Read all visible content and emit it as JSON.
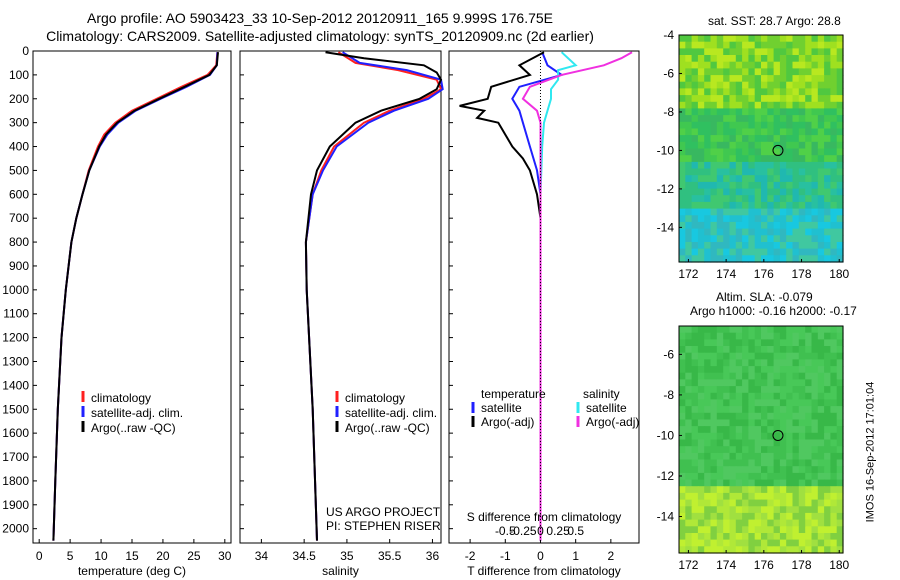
{
  "header": {
    "title_line1": "Argo profile: AO 5903423_33 10-Sep-2012 20120911_165 9.999S 176.75E",
    "title_line2": "Climatology: CARS2009. Satellite-adjusted climatology: synTS_20120909.nc (2d earlier)"
  },
  "colors": {
    "climatology": "#ff2020",
    "satellite": "#2020ff",
    "argo": "#000000",
    "salinity_satellite": "#30e8f0",
    "salinity_argo": "#f030e0"
  },
  "chart_data": [
    {
      "type": "line",
      "panel": "temperature",
      "xlabel": "temperature (deg C)",
      "xlim": [
        -1,
        31
      ],
      "ylim": [
        2060,
        0
      ],
      "xticks": [
        0,
        5,
        10,
        15,
        20,
        25,
        30
      ],
      "yticks": [
        0,
        100,
        200,
        300,
        400,
        500,
        600,
        700,
        800,
        900,
        1000,
        1100,
        1200,
        1300,
        1400,
        1500,
        1600,
        1700,
        1800,
        1900,
        2000
      ],
      "legend": [
        "climatology",
        "satellite-adj. clim.",
        "Argo(..raw -QC)"
      ],
      "series": [
        {
          "name": "climatology",
          "depth": [
            5,
            60,
            100,
            150,
            200,
            250,
            300,
            350,
            400,
            500,
            600,
            700,
            800,
            1000,
            1200,
            1500,
            1800,
            2050
          ],
          "values": [
            28.8,
            28.6,
            27.2,
            23,
            19,
            15,
            12.3,
            10.5,
            9.5,
            8,
            7,
            6,
            5.2,
            4.3,
            3.6,
            3,
            2.6,
            2.3
          ]
        },
        {
          "name": "satellite-adj. clim.",
          "depth": [
            5,
            60,
            100,
            150,
            200,
            250,
            300,
            350,
            400,
            500,
            600,
            700,
            800,
            1000,
            1200,
            1500,
            1800,
            2050
          ],
          "values": [
            28.8,
            28.7,
            27.6,
            23.8,
            19.6,
            15.6,
            12.8,
            11,
            9.8,
            8.1,
            7,
            6,
            5.2,
            4.3,
            3.6,
            3,
            2.6,
            2.3
          ]
        },
        {
          "name": "Argo(..raw -QC)",
          "depth": [
            5,
            60,
            100,
            150,
            200,
            250,
            300,
            350,
            400,
            500,
            600,
            700,
            800,
            1000,
            1200,
            1500,
            1800,
            2050
          ],
          "values": [
            28.9,
            28.7,
            27.5,
            23.5,
            19.4,
            15.4,
            12.6,
            10.8,
            9.7,
            8.1,
            7,
            6,
            5.2,
            4.3,
            3.6,
            3,
            2.6,
            2.3
          ]
        }
      ]
    },
    {
      "type": "line",
      "panel": "salinity",
      "xlabel": "salinity",
      "xlim": [
        33.75,
        36.1
      ],
      "ylim": [
        2060,
        0
      ],
      "xticks": [
        34,
        34.5,
        35,
        35.5,
        36
      ],
      "legend": [
        "climatology",
        "satellite-adj. clim.",
        "Argo(..raw -QC)"
      ],
      "annotation": [
        "US ARGO PROJECT",
        "PI: STEPHEN RISER"
      ],
      "series": [
        {
          "name": "climatology",
          "depth": [
            5,
            50,
            80,
            120,
            160,
            200,
            250,
            300,
            400,
            500,
            600,
            800,
            1000,
            1500,
            2050
          ],
          "values": [
            34.9,
            35.1,
            35.6,
            36.05,
            36.1,
            35.9,
            35.5,
            35.2,
            34.85,
            34.7,
            34.6,
            34.52,
            34.53,
            34.6,
            34.65
          ]
        },
        {
          "name": "satellite-adj. clim.",
          "depth": [
            5,
            50,
            80,
            120,
            160,
            200,
            250,
            300,
            400,
            500,
            600,
            800,
            1000,
            1500,
            2050
          ],
          "values": [
            34.95,
            35.15,
            35.7,
            36.1,
            36.12,
            35.95,
            35.55,
            35.25,
            34.88,
            34.72,
            34.6,
            34.52,
            34.53,
            34.6,
            34.65
          ]
        },
        {
          "name": "Argo(..raw -QC)",
          "depth": [
            5,
            30,
            60,
            90,
            120,
            160,
            200,
            250,
            300,
            400,
            500,
            600,
            800,
            1000,
            1500,
            2050
          ],
          "values": [
            34.75,
            35.2,
            35.9,
            36.05,
            36.1,
            36.05,
            35.85,
            35.4,
            35.1,
            34.8,
            34.65,
            34.58,
            34.52,
            34.53,
            34.6,
            34.65
          ]
        }
      ]
    },
    {
      "type": "line",
      "panel": "difference",
      "xlabel": "T difference from climatology",
      "xlabel2": "S difference from climatology",
      "xlim": [
        -2.6,
        2.8
      ],
      "ylim": [
        2060,
        0
      ],
      "xticks": [
        -2,
        -1,
        0,
        1,
        2
      ],
      "xticks_s": [
        "-0.5",
        "-0.25",
        "0",
        "0.25",
        "0.5"
      ],
      "legend": {
        "temperature": [
          "satellite",
          "Argo(-adj)"
        ],
        "salinity": [
          "satellite",
          "Argo(-adj)"
        ]
      },
      "legend_headers": [
        "temperature",
        "salinity"
      ],
      "series": [
        {
          "name": "temperature satellite",
          "depth": [
            5,
            60,
            100,
            150,
            200,
            250,
            300,
            400,
            500,
            600,
            800,
            1000,
            1500,
            2050
          ],
          "values": [
            0.05,
            0.2,
            0.6,
            -0.6,
            -0.8,
            -0.6,
            -0.5,
            -0.3,
            -0.1,
            0,
            0,
            0,
            0,
            0
          ]
        },
        {
          "name": "temperature Argo(-adj)",
          "depth": [
            5,
            60,
            100,
            150,
            200,
            230,
            250,
            280,
            300,
            350,
            400,
            450,
            500,
            600,
            700,
            800,
            1000,
            1500,
            2050
          ],
          "values": [
            0.1,
            -0.6,
            -0.3,
            -1.4,
            -1.5,
            -2.3,
            -1.6,
            -1.8,
            -1.2,
            -1.0,
            -0.8,
            -0.5,
            -0.3,
            -0.1,
            0,
            0,
            0,
            0,
            0
          ]
        },
        {
          "name": "salinity satellite",
          "depth": [
            5,
            60,
            80,
            120,
            160,
            200,
            250,
            300,
            400,
            600,
            800,
            1000,
            1500,
            2050
          ],
          "values": [
            0.6,
            1.0,
            0.5,
            0.5,
            0.3,
            0.3,
            0.2,
            0.1,
            0.05,
            0,
            0,
            0,
            0,
            0
          ]
        },
        {
          "name": "salinity Argo(-adj)",
          "depth": [
            5,
            30,
            60,
            100,
            150,
            200,
            250,
            300,
            400,
            600,
            800,
            1000,
            1500,
            2050
          ],
          "values": [
            2.6,
            2.3,
            1.8,
            0.6,
            -0.3,
            -0.5,
            -0.1,
            0,
            0,
            0,
            0,
            0,
            0,
            0
          ]
        }
      ]
    },
    {
      "type": "heatmap",
      "panel": "sst-map",
      "title": "sat. SST: 28.7 Argo: 28.8",
      "xticks": [
        172,
        174,
        176,
        178,
        180
      ],
      "yticks": [
        -4,
        -6,
        -8,
        -10,
        -12,
        -14
      ],
      "xlim": [
        171.5,
        180.2
      ],
      "ylim": [
        -15.8,
        -4
      ],
      "marker": {
        "lon": 176.75,
        "lat": -10
      }
    },
    {
      "type": "heatmap",
      "panel": "sla-map",
      "title": "Altim. SLA: -0.079",
      "subtitle": "Argo h1000: -0.16 h2000: -0.17",
      "xticks": [
        172,
        174,
        176,
        178,
        180
      ],
      "yticks": [
        -6,
        -8,
        -10,
        -12,
        -14
      ],
      "xlim": [
        171.5,
        180.2
      ],
      "ylim": [
        -15.8,
        -4.6
      ],
      "marker": {
        "lon": 176.75,
        "lat": -10
      }
    }
  ],
  "footer": {
    "stamp": "IMOS 16-Sep-2012 17:01:04"
  }
}
